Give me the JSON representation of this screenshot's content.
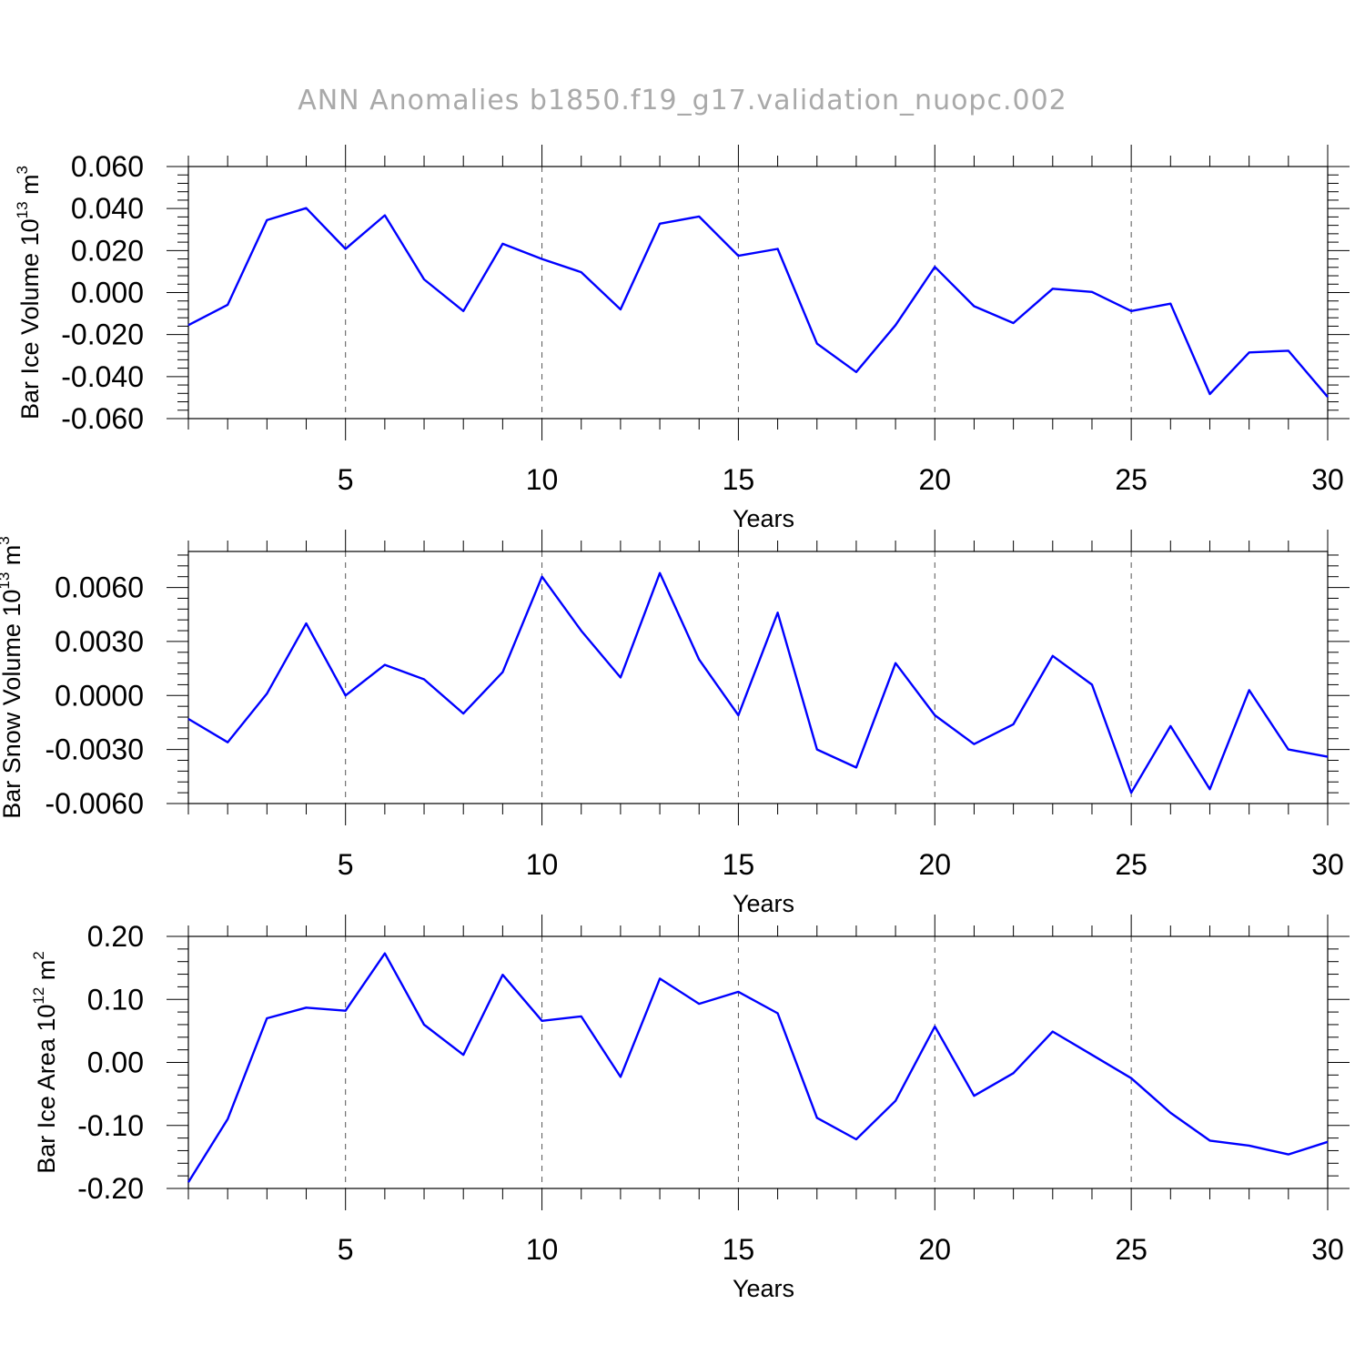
{
  "title": "ANN Anomalies b1850.f19_g17.validation_nuopc.002",
  "line_color": "#0000ff",
  "chart_data": [
    {
      "type": "line",
      "ylabel_main": "Bar Ice Volume 10",
      "ylabel_exp": "13",
      "ylabel_unit": " m",
      "ylabel_unit_exp": "3",
      "xlabel": "Years",
      "xlim": [
        1,
        30
      ],
      "ylim": [
        -0.06,
        0.06
      ],
      "xticks": [
        5,
        10,
        15,
        20,
        25,
        30
      ],
      "yticks": [
        -0.06,
        -0.04,
        -0.02,
        0.0,
        0.02,
        0.04,
        0.06
      ],
      "ytick_labels": [
        "-0.060",
        "-0.040",
        "-0.020",
        "0.000",
        "0.020",
        "0.040",
        "0.060"
      ],
      "grid_x": [
        5,
        10,
        15,
        20,
        25
      ],
      "x": [
        1,
        2,
        3,
        4,
        5,
        6,
        7,
        8,
        9,
        10,
        11,
        12,
        13,
        14,
        15,
        16,
        17,
        18,
        19,
        20,
        21,
        22,
        23,
        24,
        25,
        26,
        27,
        28,
        29,
        30
      ],
      "y": [
        -0.0155,
        -0.0058,
        0.0345,
        0.0402,
        0.0208,
        0.0368,
        0.0063,
        -0.0088,
        0.0232,
        0.016,
        0.0097,
        -0.008,
        0.0328,
        0.0362,
        0.0175,
        0.0208,
        -0.0243,
        -0.0378,
        -0.0155,
        0.0122,
        -0.0065,
        -0.0145,
        0.0018,
        0.0003,
        -0.0088,
        -0.0053,
        -0.0483,
        -0.0285,
        -0.0277,
        -0.0497
      ]
    },
    {
      "type": "line",
      "ylabel_main": "Bar Snow Volume 10",
      "ylabel_exp": "13",
      "ylabel_unit": " m",
      "ylabel_unit_exp": "3",
      "xlabel": "Years",
      "xlim": [
        1,
        30
      ],
      "ylim": [
        -0.006,
        0.008
      ],
      "xticks": [
        5,
        10,
        15,
        20,
        25,
        30
      ],
      "yticks": [
        -0.006,
        -0.003,
        0.0,
        0.003,
        0.006
      ],
      "ytick_labels": [
        "-0.0060",
        "-0.0030",
        "0.0000",
        "0.0030",
        "0.0060"
      ],
      "grid_x": [
        5,
        10,
        15,
        20,
        25
      ],
      "x": [
        1,
        2,
        3,
        4,
        5,
        6,
        7,
        8,
        9,
        10,
        11,
        12,
        13,
        14,
        15,
        16,
        17,
        18,
        19,
        20,
        21,
        22,
        23,
        24,
        25,
        26,
        27,
        28,
        29,
        30
      ],
      "y": [
        -0.0013,
        -0.0026,
        0.0001,
        0.004,
        0.0,
        0.0017,
        0.0009,
        -0.001,
        0.0013,
        0.0066,
        0.0036,
        0.001,
        0.0068,
        0.002,
        -0.0011,
        0.0046,
        -0.003,
        -0.004,
        0.0018,
        -0.0011,
        -0.0027,
        -0.0016,
        0.0022,
        0.0006,
        -0.0054,
        -0.0017,
        -0.0052,
        0.0003,
        -0.003,
        -0.0034
      ]
    },
    {
      "type": "line",
      "ylabel_main": "Bar Ice Area 10",
      "ylabel_exp": "12",
      "ylabel_unit": " m",
      "ylabel_unit_exp": "2",
      "xlabel": "Years",
      "xlim": [
        1,
        30
      ],
      "ylim": [
        -0.2,
        0.2
      ],
      "xticks": [
        5,
        10,
        15,
        20,
        25,
        30
      ],
      "yticks": [
        -0.2,
        -0.1,
        0.0,
        0.1,
        0.2
      ],
      "ytick_labels": [
        "-0.20",
        "-0.10",
        "0.00",
        "0.10",
        "0.20"
      ],
      "grid_x": [
        5,
        10,
        15,
        20,
        25
      ],
      "x": [
        1,
        2,
        3,
        4,
        5,
        6,
        7,
        8,
        9,
        10,
        11,
        12,
        13,
        14,
        15,
        16,
        17,
        18,
        19,
        20,
        21,
        22,
        23,
        24,
        25,
        26,
        27,
        28,
        29,
        30
      ],
      "y": [
        -0.19,
        -0.09,
        0.07,
        0.087,
        0.082,
        0.173,
        0.06,
        0.012,
        0.139,
        0.066,
        0.073,
        -0.023,
        0.133,
        0.093,
        0.112,
        0.078,
        -0.088,
        -0.122,
        -0.061,
        0.057,
        -0.053,
        -0.017,
        0.049,
        0.012,
        -0.025,
        -0.08,
        -0.124,
        -0.132,
        -0.146,
        -0.126
      ]
    }
  ]
}
